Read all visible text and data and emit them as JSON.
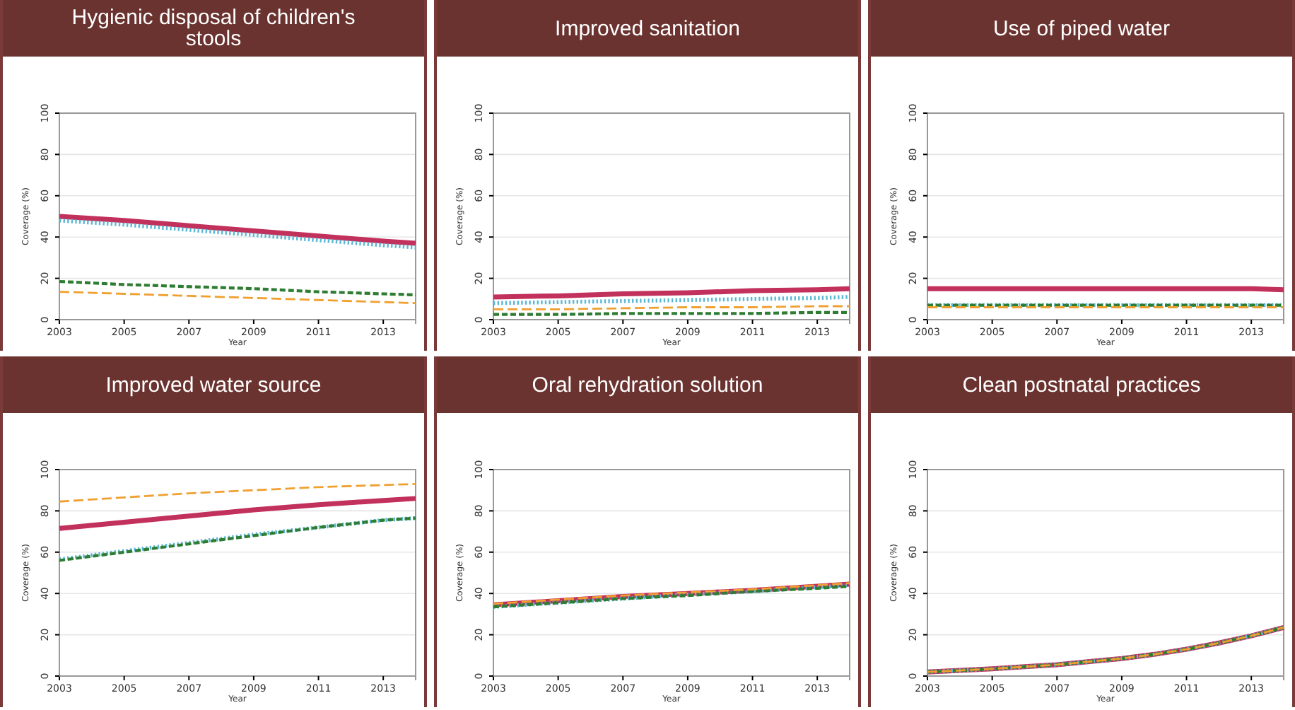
{
  "chart_data": [
    {
      "type": "line",
      "title": "Hygienic disposal of children's stools",
      "xlabel": "Year",
      "ylabel": "Coverage (%)",
      "x": [
        2003,
        2005,
        2007,
        2009,
        2011,
        2013,
        2014
      ],
      "xlim": [
        2003,
        2014
      ],
      "ylim": [
        0,
        100
      ],
      "xticks": [
        2003,
        2005,
        2007,
        2009,
        2011,
        2013
      ],
      "yticks": [
        0,
        20,
        40,
        60,
        80,
        100
      ],
      "grid": "y",
      "series": [
        {
          "color": "#c2305c",
          "line_style": "solid",
          "values": [
            50,
            48,
            45.5,
            43,
            40.5,
            38,
            37
          ]
        },
        {
          "color": "#5bb8d6",
          "line_style": "dotted",
          "values": [
            48,
            46,
            43.5,
            41,
            38.5,
            36,
            35
          ]
        },
        {
          "color": "#2e7d32",
          "line_style": "dashed",
          "values": [
            18.5,
            17,
            16,
            15,
            13.5,
            12.5,
            12
          ]
        },
        {
          "color": "#f0a030",
          "line_style": "longdash",
          "values": [
            13.5,
            12.5,
            11.5,
            10.5,
            9.5,
            8.5,
            8
          ]
        }
      ]
    },
    {
      "type": "line",
      "title": "Improved sanitation",
      "xlabel": "Year",
      "ylabel": "Coverage (%)",
      "x": [
        2003,
        2005,
        2007,
        2009,
        2011,
        2013,
        2014
      ],
      "xlim": [
        2003,
        2014
      ],
      "ylim": [
        0,
        100
      ],
      "xticks": [
        2003,
        2005,
        2007,
        2009,
        2011,
        2013
      ],
      "yticks": [
        0,
        20,
        40,
        60,
        80,
        100
      ],
      "grid": "y",
      "series": [
        {
          "color": "#c2305c",
          "line_style": "solid",
          "values": [
            11,
            11.5,
            12.5,
            13,
            14,
            14.5,
            15
          ]
        },
        {
          "color": "#5bb8d6",
          "line_style": "dotted",
          "values": [
            8,
            8.5,
            9,
            9.5,
            10,
            10.5,
            11
          ]
        },
        {
          "color": "#2e7d32",
          "line_style": "dashed",
          "values": [
            2.5,
            2.5,
            3,
            3,
            3,
            3.5,
            3.5
          ]
        },
        {
          "color": "#f0a030",
          "line_style": "longdash",
          "values": [
            5,
            5,
            5.5,
            6,
            6,
            6.5,
            6.5
          ]
        }
      ]
    },
    {
      "type": "line",
      "title": "Use of piped water",
      "xlabel": "Year",
      "ylabel": "Coverage (%)",
      "x": [
        2003,
        2005,
        2007,
        2009,
        2011,
        2013,
        2014
      ],
      "xlim": [
        2003,
        2014
      ],
      "ylim": [
        0,
        100
      ],
      "xticks": [
        2003,
        2005,
        2007,
        2009,
        2011,
        2013
      ],
      "yticks": [
        0,
        20,
        40,
        60,
        80,
        100
      ],
      "grid": "y",
      "series": [
        {
          "color": "#c2305c",
          "line_style": "solid",
          "values": [
            15,
            15,
            15,
            15,
            15,
            15,
            14.5
          ]
        },
        {
          "color": "#5bb8d6",
          "line_style": "dotted",
          "values": [
            7,
            7,
            7,
            7,
            7,
            7,
            7
          ]
        },
        {
          "color": "#2e7d32",
          "line_style": "dashed",
          "values": [
            7,
            7,
            7,
            7,
            7,
            7,
            7
          ]
        },
        {
          "color": "#f0a030",
          "line_style": "longdash",
          "values": [
            6,
            6,
            6,
            6,
            6,
            6,
            6
          ]
        }
      ]
    },
    {
      "type": "line",
      "title": "Improved water source",
      "xlabel": "Year",
      "ylabel": "Coverage (%)",
      "x": [
        2003,
        2005,
        2007,
        2009,
        2011,
        2013,
        2014
      ],
      "xlim": [
        2003,
        2014
      ],
      "ylim": [
        0,
        100
      ],
      "xticks": [
        2003,
        2005,
        2007,
        2009,
        2011,
        2013
      ],
      "yticks": [
        0,
        20,
        40,
        60,
        80,
        100
      ],
      "grid": "y",
      "series": [
        {
          "color": "#c2305c",
          "line_style": "solid",
          "values": [
            71.5,
            74.5,
            77.5,
            80.5,
            83,
            85,
            86
          ]
        },
        {
          "color": "#5bb8d6",
          "line_style": "dotted",
          "values": [
            56.5,
            60.5,
            64.5,
            68.5,
            72,
            75.5,
            76.5
          ]
        },
        {
          "color": "#2e7d32",
          "line_style": "dashed",
          "values": [
            56,
            60,
            64,
            68,
            72,
            75.5,
            76.5
          ]
        },
        {
          "color": "#f0a030",
          "line_style": "longdash",
          "values": [
            84.5,
            86.5,
            88.5,
            90,
            91.5,
            92.5,
            93
          ]
        }
      ]
    },
    {
      "type": "line",
      "title": "Oral rehydration solution",
      "xlabel": "Year",
      "ylabel": "Coverage (%)",
      "x": [
        2003,
        2005,
        2007,
        2009,
        2011,
        2013,
        2014
      ],
      "xlim": [
        2003,
        2014
      ],
      "ylim": [
        0,
        100
      ],
      "xticks": [
        2003,
        2005,
        2007,
        2009,
        2011,
        2013
      ],
      "yticks": [
        0,
        20,
        40,
        60,
        80,
        100
      ],
      "grid": "y",
      "series": [
        {
          "color": "#c2305c",
          "line_style": "solid",
          "values": [
            34.5,
            36.5,
            38.5,
            40,
            41.5,
            43.5,
            44.5
          ]
        },
        {
          "color": "#5bb8d6",
          "line_style": "dotted",
          "values": [
            33.5,
            35.5,
            37.5,
            39.5,
            41,
            43,
            44
          ]
        },
        {
          "color": "#2e7d32",
          "line_style": "dashed",
          "values": [
            33.5,
            35.5,
            37.5,
            39,
            41,
            42.5,
            43.5
          ]
        },
        {
          "color": "#f0a030",
          "line_style": "longdash",
          "values": [
            35,
            37,
            39,
            40.5,
            42,
            44,
            45
          ]
        }
      ]
    },
    {
      "type": "line",
      "title": "Clean postnatal practices",
      "xlabel": "Year",
      "ylabel": "Coverage (%)",
      "x": [
        2003,
        2004,
        2005,
        2006,
        2007,
        2008,
        2009,
        2010,
        2011,
        2012,
        2013,
        2014
      ],
      "xlim": [
        2003,
        2014
      ],
      "ylim": [
        0,
        100
      ],
      "xticks": [
        2003,
        2005,
        2007,
        2009,
        2011,
        2013
      ],
      "yticks": [
        0,
        20,
        40,
        60,
        80,
        100
      ],
      "grid": "y",
      "series": [
        {
          "color": "#c2305c",
          "line_style": "solid",
          "values": [
            2,
            2.7,
            3.5,
            4.5,
            5.5,
            7,
            8.5,
            10.5,
            13,
            16,
            19.5,
            23.5
          ]
        },
        {
          "color": "#5bb8d6",
          "line_style": "dotted",
          "values": [
            2,
            2.7,
            3.5,
            4.5,
            5.5,
            7,
            8.5,
            10.5,
            13,
            16,
            19.5,
            23.5
          ]
        },
        {
          "color": "#2e7d32",
          "line_style": "dashed",
          "values": [
            2,
            2.7,
            3.5,
            4.5,
            5.5,
            7,
            8.5,
            10.5,
            13,
            16,
            19.5,
            23.5
          ]
        },
        {
          "color": "#f0a030",
          "line_style": "longdash",
          "values": [
            2,
            2.7,
            3.5,
            4.5,
            5.5,
            7,
            8.5,
            10.5,
            13,
            16,
            19.5,
            23.5
          ]
        }
      ]
    }
  ]
}
